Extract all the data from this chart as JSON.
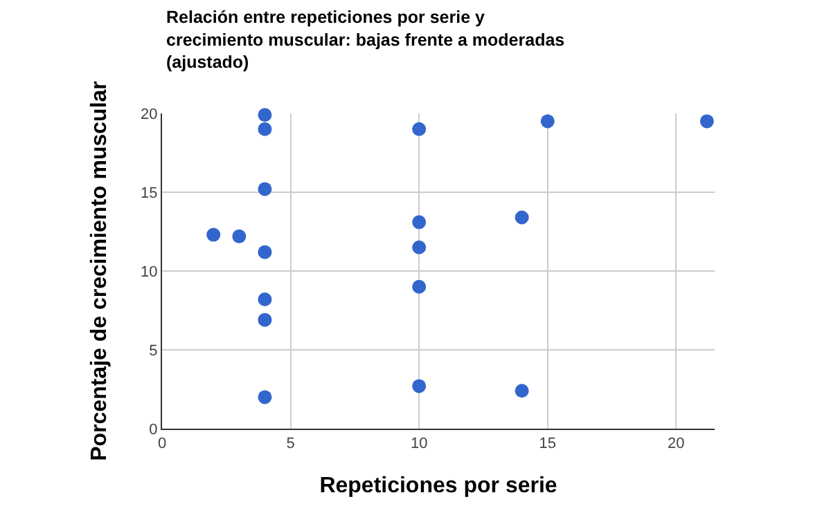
{
  "chart_data": {
    "type": "scatter",
    "title": "Relación entre repeticiones por serie y\ncrecimiento muscular: bajas frente a moderadas\n(ajustado)",
    "xlabel": "Repeticiones por serie",
    "ylabel": "Porcentaje de crecimiento muscular",
    "x": [
      2,
      3,
      4,
      4,
      4,
      4,
      4,
      4,
      4,
      10,
      10,
      10,
      10,
      10,
      14,
      14,
      15,
      21.2
    ],
    "values": [
      12.3,
      12.2,
      19.9,
      19.0,
      15.2,
      11.2,
      8.2,
      6.9,
      2.0,
      19.0,
      13.1,
      11.5,
      9.0,
      2.7,
      13.4,
      2.4,
      19.5,
      19.5
    ],
    "color": "#3366cc",
    "marker": "circle",
    "xlim": [
      0,
      21.5
    ],
    "xticks": [
      0,
      5,
      10,
      15,
      20
    ],
    "ylim": [
      0,
      20
    ],
    "yticks": [
      0,
      5,
      10,
      15,
      20
    ],
    "grid": true
  }
}
